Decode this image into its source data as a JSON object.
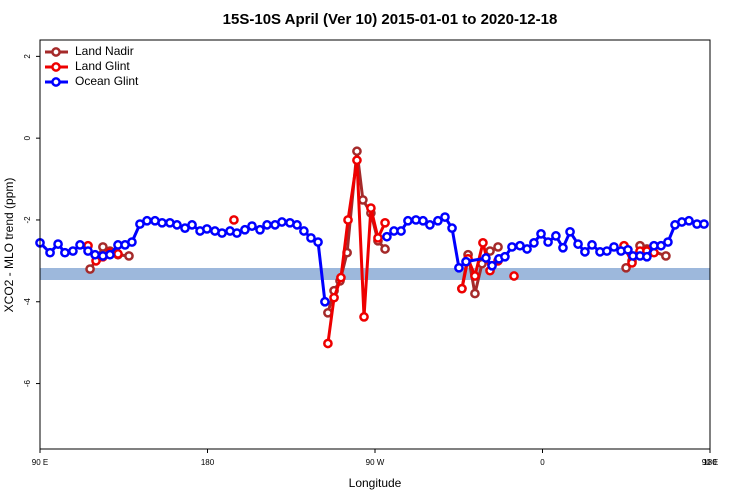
{
  "chart_data": {
    "type": "line",
    "title": "15S-10S April (Ver 10)   2015-01-01 to 2020-12-18",
    "xlabel": "Longitude",
    "ylabel": "XCO2 - MLO trend (ppm)",
    "xlim": [
      90,
      450
    ],
    "ylim": [
      -7.6,
      2.4
    ],
    "xticks": [
      {
        "value": 90,
        "label": "90 E"
      },
      {
        "value": 180,
        "label": "180"
      },
      {
        "value": 270,
        "label": "90 W"
      },
      {
        "value": 360,
        "label": "0"
      },
      {
        "value": 450,
        "label": "90 E"
      },
      {
        "value": 540,
        "label": "180"
      }
    ],
    "yticks": [
      2,
      0,
      -2,
      -4,
      -6
    ],
    "legend": "top-left",
    "series": [
      {
        "name": "Land Nadir",
        "color": "#a52a2a",
        "x": [
          116.9,
          120.6,
          123.8,
          127.6,
          131.9,
          137.8,
          null,
          244.7,
          248,
          251.2,
          255,
          260.3,
          263.5,
          267.8,
          271.6,
          275.4,
          null,
          316.7,
          320,
          323.7,
          327.5,
          331.8,
          336.1,
          null,
          404.9,
          408.1,
          412.4,
          416.1,
          426.3
        ],
        "values": [
          -3.2,
          -2.95,
          -2.66,
          -2.76,
          -2.85,
          -2.88,
          null,
          -4.27,
          -3.73,
          -3.49,
          -2.8,
          -0.32,
          -1.51,
          -1.83,
          -2.51,
          -2.71,
          null,
          -3.68,
          -2.85,
          -3.8,
          -3.07,
          -2.76,
          -2.66,
          null,
          -3.17,
          -3.0,
          -2.63,
          -2.71,
          -2.88
        ]
      },
      {
        "name": "Land Glint",
        "color": "#ee0000",
        "x": [
          115.8,
          120.1,
          123.8,
          127.6,
          131.9,
          null,
          194.2,
          null,
          244.7,
          248,
          251.7,
          255.5,
          260.3,
          264.1,
          267.8,
          271.6,
          275.4,
          null,
          316.7,
          320,
          323.7,
          328,
          331.8,
          336.1,
          null,
          344.7,
          null,
          403.8,
          408.1,
          412.4,
          416.1,
          419.9
        ],
        "values": [
          -2.63,
          -3.0,
          -2.9,
          -2.8,
          -2.83,
          null,
          -2.0,
          null,
          -5.02,
          -3.9,
          -3.41,
          -2.0,
          -0.54,
          -4.37,
          -1.71,
          -2.44,
          -2.07,
          null,
          -3.68,
          -2.95,
          -3.37,
          -2.56,
          -3.24,
          -3.0,
          null,
          -3.37,
          null,
          -2.63,
          -3.05,
          -2.76,
          -2.76,
          -2.8
        ]
      },
      {
        "name": "Ocean Glint",
        "color": "#0000ff",
        "x": [
          90,
          95.4,
          99.7,
          103.4,
          107.7,
          111.5,
          115.8,
          119.6,
          123.8,
          127.6,
          131.9,
          135.7,
          139.4,
          143.7,
          147.5,
          151.8,
          155.6,
          159.8,
          163.6,
          167.9,
          171.7,
          176,
          179.7,
          184,
          187.8,
          192.1,
          195.8,
          200.1,
          203.9,
          208.2,
          212,
          216.3,
          220,
          224.3,
          228.1,
          231.8,
          235.6,
          239.4,
          243.1,
          null,
          276.4,
          280.2,
          284,
          287.7,
          292,
          295.8,
          299.5,
          303.8,
          307.6,
          311.4,
          315.1,
          318.9,
          329.6,
          332.9,
          336.6,
          339.8,
          343.6,
          347.9,
          351.7,
          355.4,
          359.2,
          363,
          367.2,
          371,
          374.8,
          379.1,
          382.8,
          386.6,
          390.9,
          394.6,
          398.4,
          402.2,
          405.9,
          408.6,
          412.4,
          416.1,
          419.9,
          423.7,
          427.4,
          431.2,
          434.9,
          438.7,
          443,
          446.8
        ],
        "values": [
          -2.56,
          -2.8,
          -2.59,
          -2.8,
          -2.76,
          -2.61,
          -2.76,
          -2.85,
          -2.88,
          -2.85,
          -2.61,
          -2.61,
          -2.54,
          -2.1,
          -2.02,
          -2.02,
          -2.07,
          -2.07,
          -2.12,
          -2.2,
          -2.12,
          -2.27,
          -2.22,
          -2.27,
          -2.32,
          -2.27,
          -2.32,
          -2.24,
          -2.15,
          -2.24,
          -2.12,
          -2.12,
          -2.05,
          -2.07,
          -2.12,
          -2.27,
          -2.44,
          -2.54,
          -4.0,
          null,
          -2.41,
          -2.27,
          -2.27,
          -2.02,
          -2.0,
          -2.02,
          -2.12,
          -2.02,
          -1.93,
          -2.2,
          -3.17,
          -3.02,
          -2.93,
          -3.12,
          -2.95,
          -2.9,
          -2.66,
          -2.63,
          -2.71,
          -2.56,
          -2.34,
          -2.54,
          -2.39,
          -2.68,
          -2.29,
          -2.59,
          -2.78,
          -2.61,
          -2.78,
          -2.76,
          -2.66,
          -2.76,
          -2.73,
          -2.88,
          -2.88,
          -2.9,
          -2.63,
          -2.63,
          -2.54,
          -2.12,
          -2.05,
          -2.02,
          -2.1,
          -2.1
        ]
      }
    ]
  }
}
